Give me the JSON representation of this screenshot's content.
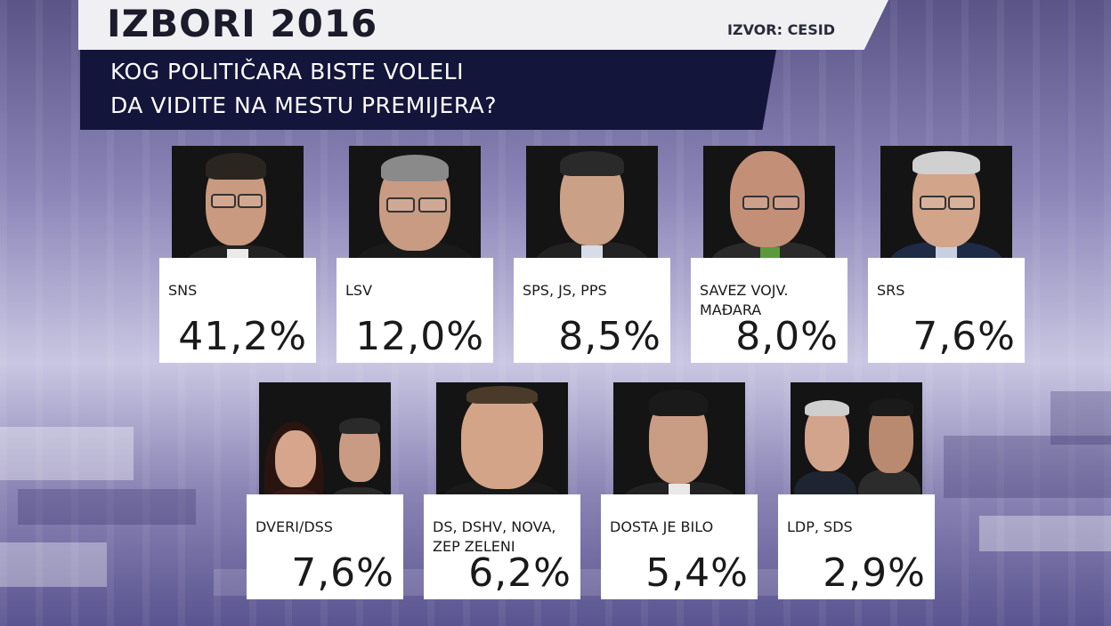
{
  "header": {
    "title": "IZBORI 2016",
    "source": "IZVOR: CESID",
    "question_line1": "KOG POLITIČARA BISTE VOLELI",
    "question_line2": "DA VIDITE NA MESTU PREMIJERA?"
  },
  "results": [
    {
      "party": "SNS",
      "percent": "41,2%"
    },
    {
      "party": "LSV",
      "percent": "12,0%"
    },
    {
      "party": "SPS, JS, PPS",
      "percent": "8,5%"
    },
    {
      "party": "SAVEZ VOJV.\nMAĐARA",
      "percent": "8,0%"
    },
    {
      "party": "SRS",
      "percent": "7,6%"
    },
    {
      "party": "DVERI/DSS",
      "percent": "7,6%"
    },
    {
      "party": "DS, DSHV, NOVA,\nZEP ZELENI",
      "percent": "6,2%"
    },
    {
      "party": "DOSTA JE BILO",
      "percent": "5,4%"
    },
    {
      "party": "LDP, SDS",
      "percent": "2,9%"
    }
  ]
}
